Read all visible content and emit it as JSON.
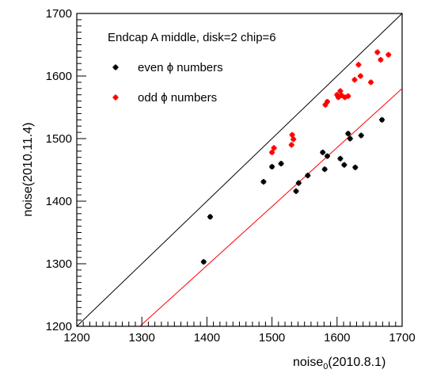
{
  "chart_data": {
    "type": "scatter",
    "xlabel_main": "noise",
    "xlabel_sub": "0",
    "xlabel_tail": "(2010.8.1)",
    "ylabel": "noise(2010.11.4)",
    "xlim": [
      1200,
      1700
    ],
    "ylim": [
      1200,
      1700
    ],
    "x_ticks": [
      1200,
      1300,
      1400,
      1500,
      1600,
      1700
    ],
    "y_ticks": [
      1200,
      1300,
      1400,
      1500,
      1600,
      1700
    ],
    "legend_title": "Endcap A middle, disk=2 chip=6",
    "legend_placement": "top-left",
    "series": [
      {
        "name": "even ϕ numbers",
        "color": "#000000",
        "points": [
          [
            1395,
            1303
          ],
          [
            1405,
            1375
          ],
          [
            1487,
            1431
          ],
          [
            1500,
            1455
          ],
          [
            1514,
            1460
          ],
          [
            1537,
            1416
          ],
          [
            1541,
            1429
          ],
          [
            1555,
            1441
          ],
          [
            1578,
            1478
          ],
          [
            1581,
            1451
          ],
          [
            1585,
            1472
          ],
          [
            1605,
            1468
          ],
          [
            1611,
            1458
          ],
          [
            1617,
            1508
          ],
          [
            1620,
            1500
          ],
          [
            1628,
            1454
          ],
          [
            1637,
            1505
          ],
          [
            1669,
            1530
          ]
        ]
      },
      {
        "name": "odd ϕ numbers",
        "color": "#ff0000",
        "points": [
          [
            1500,
            1478
          ],
          [
            1503,
            1485
          ],
          [
            1530,
            1490
          ],
          [
            1531,
            1506
          ],
          [
            1533,
            1499
          ],
          [
            1582,
            1554
          ],
          [
            1585,
            1559
          ],
          [
            1600,
            1570
          ],
          [
            1602,
            1566
          ],
          [
            1605,
            1576
          ],
          [
            1607,
            1569
          ],
          [
            1612,
            1566
          ],
          [
            1617,
            1568
          ],
          [
            1627,
            1594
          ],
          [
            1633,
            1618
          ],
          [
            1636,
            1600
          ],
          [
            1652,
            1590
          ],
          [
            1662,
            1638
          ],
          [
            1667,
            1626
          ],
          [
            1679,
            1634
          ]
        ]
      }
    ],
    "reference_lines": [
      {
        "color": "#000000",
        "from": [
          1200,
          1200
        ],
        "to": [
          1700,
          1700
        ]
      },
      {
        "color": "#ff0000",
        "from": [
          1297,
          1200
        ],
        "to": [
          1700,
          1580
        ]
      }
    ]
  }
}
